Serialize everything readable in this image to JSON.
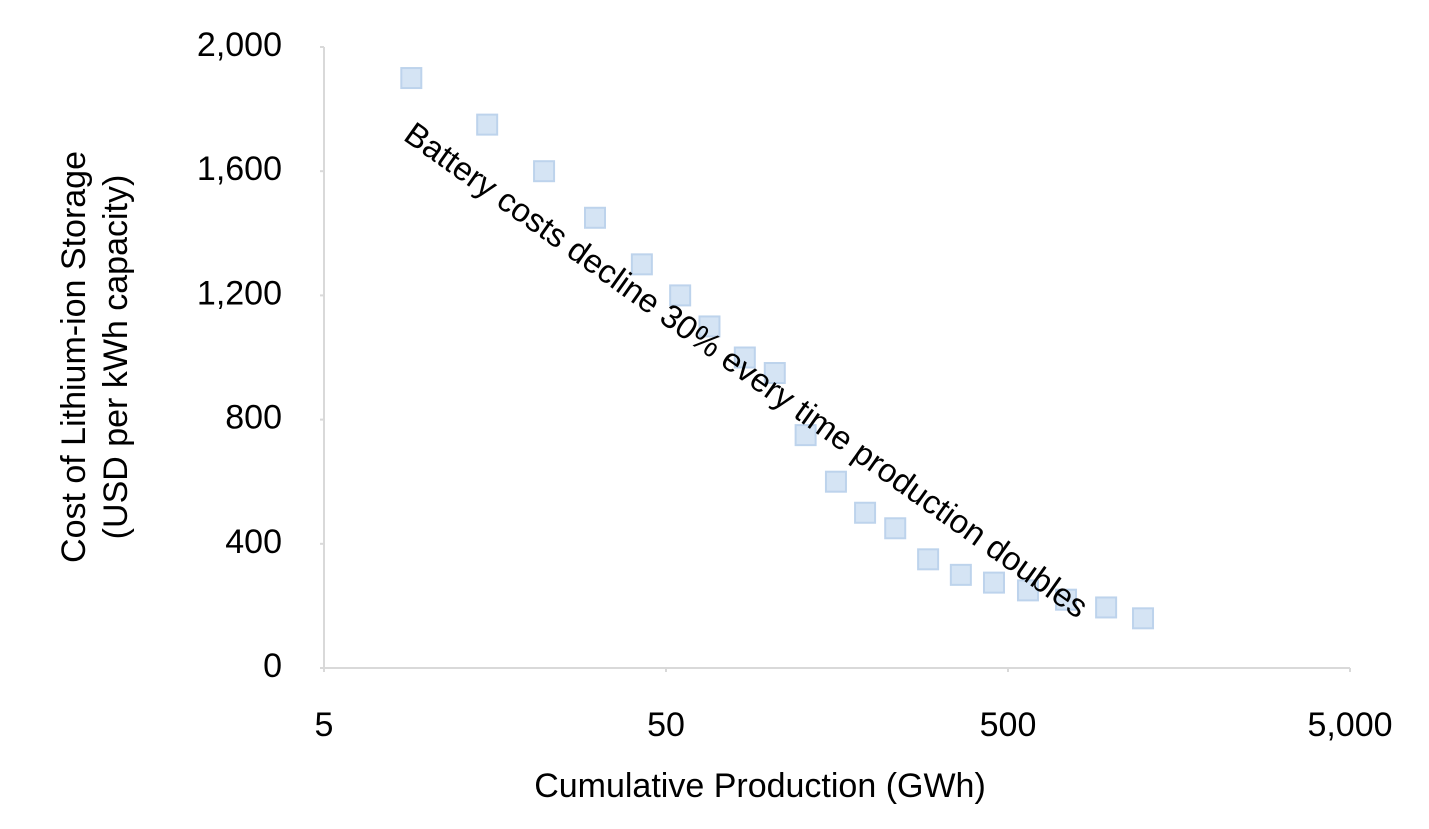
{
  "chart_data": {
    "type": "scatter",
    "x_label": "Cumulative Production (GWh)",
    "y_label": [
      "Cost of Lithium-ion Storage",
      "(USD per kWh capacity)"
    ],
    "annotation": "Battery costs decline 30% every time production doubles",
    "x_log": true,
    "xlim": [
      5,
      5000
    ],
    "xticks": [
      5,
      50,
      500,
      {
        "value": 5000,
        "label": "5,000"
      }
    ],
    "ylim": [
      0,
      2000
    ],
    "yticks": [
      0,
      400,
      800,
      {
        "value": 1200,
        "label": "1,200"
      },
      {
        "value": 1600,
        "label": "1,600"
      },
      {
        "value": 2000,
        "label": "2,000"
      }
    ],
    "grid": false,
    "color": "#d5e4f4",
    "edge_color": "#bdd3ec",
    "x": [
      9,
      15,
      22,
      31,
      42.5,
      55,
      67,
      85,
      104,
      128,
      157,
      191,
      234,
      292,
      364,
      455,
      572,
      739,
      968,
      1241
    ],
    "values": [
      1900,
      1750,
      1600,
      1450,
      1300,
      1200,
      1100,
      1000,
      950,
      750,
      600,
      500,
      450,
      350,
      300,
      275,
      250,
      220,
      195,
      160
    ]
  }
}
